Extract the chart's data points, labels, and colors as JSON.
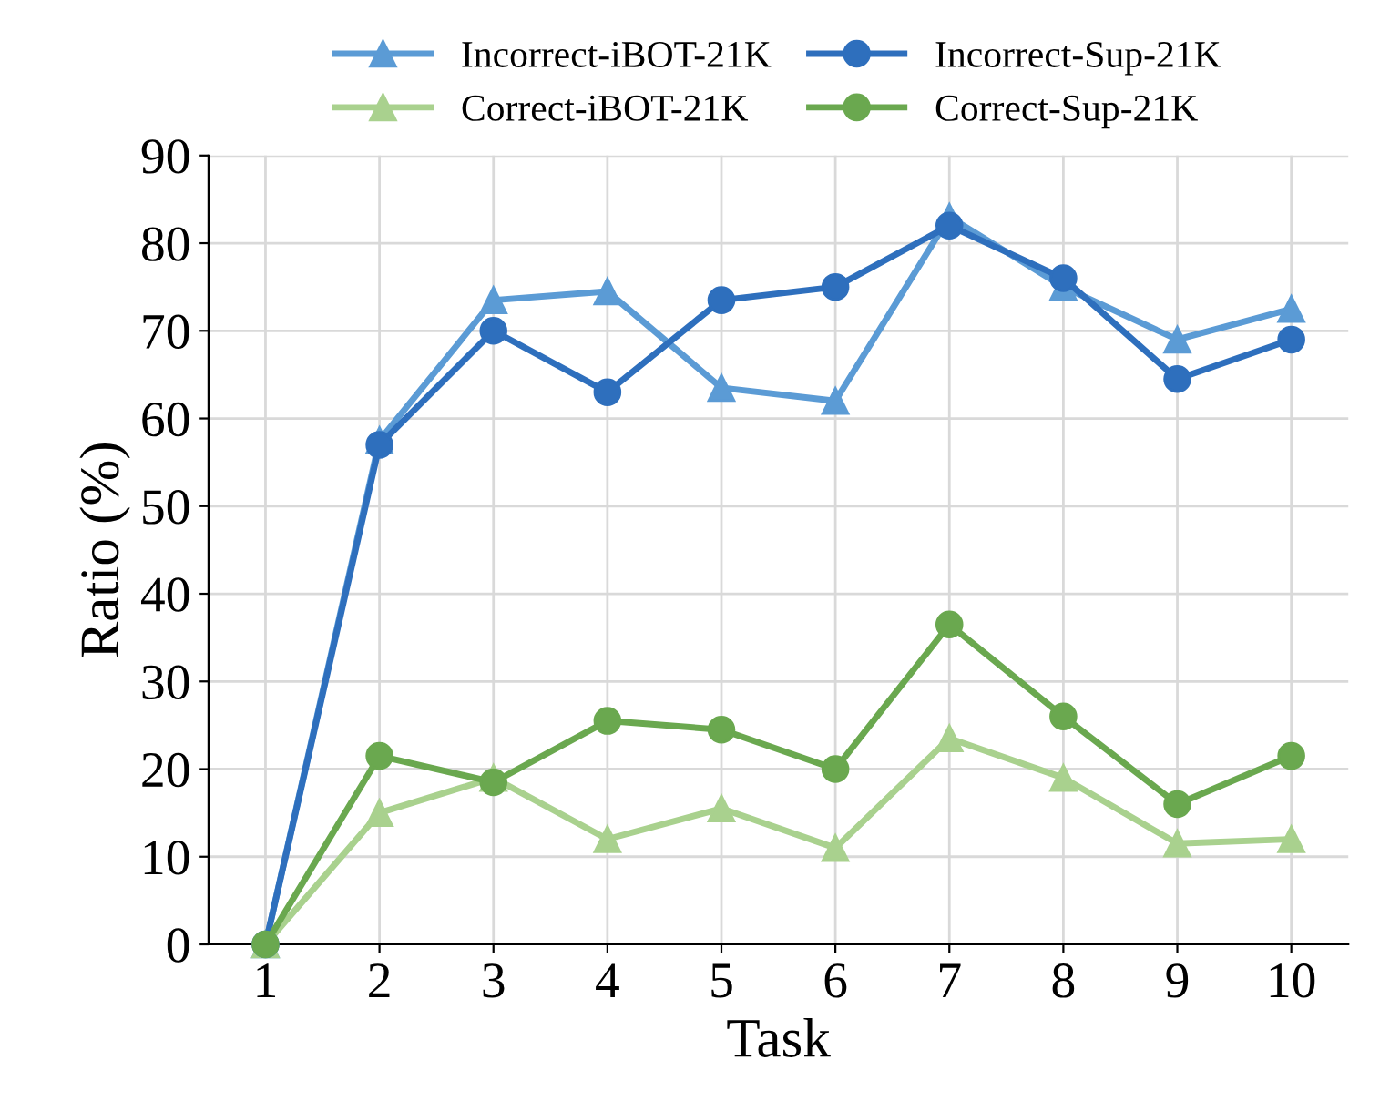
{
  "chart_data": {
    "type": "line",
    "xlabel": "Task",
    "ylabel": "Ratio (%)",
    "categories": [
      "1",
      "2",
      "3",
      "4",
      "5",
      "6",
      "7",
      "8",
      "9",
      "10"
    ],
    "ylim": [
      0,
      90
    ],
    "yticks": [
      0,
      10,
      20,
      30,
      40,
      50,
      60,
      70,
      80,
      90
    ],
    "grid": true,
    "legend": "top",
    "line_style": "solid",
    "series": [
      {
        "name": "Incorrect-iBOT-21K",
        "color": "#5b9bd5",
        "marker": "triangle",
        "values": [
          0,
          57.5,
          73.5,
          74.5,
          63.5,
          62,
          83,
          75,
          69,
          72.5
        ]
      },
      {
        "name": "Correct-iBOT-21K",
        "color": "#a9d18e",
        "marker": "triangle",
        "values": [
          0,
          15,
          19,
          12,
          15.5,
          11,
          23.5,
          19,
          11.5,
          12
        ]
      },
      {
        "name": "Incorrect-Sup-21K",
        "color": "#2e6fbd",
        "marker": "circle",
        "values": [
          0,
          57,
          70,
          63,
          73.5,
          75,
          82,
          76,
          64.5,
          69
        ]
      },
      {
        "name": "Correct-Sup-21K",
        "color": "#6aa84f",
        "marker": "circle",
        "values": [
          0,
          21.5,
          18.5,
          25.5,
          24.5,
          20,
          36.5,
          26,
          16,
          21.5
        ]
      }
    ]
  }
}
